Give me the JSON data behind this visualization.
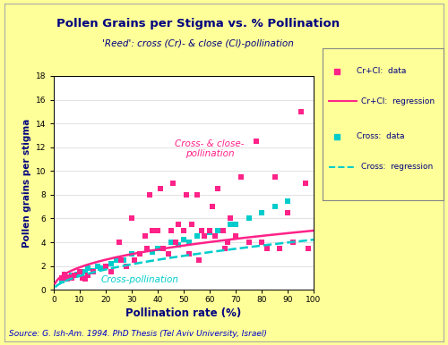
{
  "title": "Pollen Grains per Stigma vs. % Pollination",
  "subtitle": "'Reed': cross (Cr)- & close (Cl)-pollination",
  "xlabel": "Pollination rate (%)",
  "ylabel": "Pollen grains per stigma",
  "source": "Source: G. Ish-Am. 1994. PhD Thesis (Tel Aviv University, Israel)",
  "xlim": [
    0,
    100
  ],
  "ylim": [
    0,
    18
  ],
  "xticks": [
    0,
    10,
    20,
    30,
    40,
    50,
    60,
    70,
    80,
    90,
    100
  ],
  "yticks": [
    0,
    2,
    4,
    6,
    8,
    10,
    12,
    14,
    16,
    18
  ],
  "bg_color": "#FFFF99",
  "plot_bg_color": "#FFFFFF",
  "cc_color": "#FF2288",
  "cross_color": "#00CCCC",
  "annotation_cross_close": "Cross- & close-\npollination",
  "annotation_cross": "Cross-pollination",
  "legend_labels": [
    "Cr+Cl:  data",
    "Cr+Cl:  regression",
    "Cross:  data",
    "Cross:  regression"
  ],
  "cc_scatter_x": [
    3,
    4,
    5,
    6,
    7,
    8,
    10,
    11,
    12,
    13,
    15,
    20,
    22,
    25,
    26,
    28,
    30,
    31,
    33,
    35,
    36,
    37,
    38,
    40,
    41,
    42,
    44,
    45,
    46,
    47,
    48,
    50,
    51,
    52,
    53,
    55,
    56,
    57,
    58,
    60,
    61,
    62,
    63,
    65,
    66,
    67,
    68,
    70,
    72,
    75,
    78,
    80,
    82,
    85,
    87,
    90,
    92,
    95,
    97,
    98
  ],
  "cc_scatter_y": [
    1.0,
    1.3,
    0.9,
    1.1,
    1.0,
    1.2,
    1.5,
    1.0,
    0.9,
    1.2,
    1.5,
    2.0,
    1.5,
    4.0,
    2.5,
    2.0,
    6.0,
    2.5,
    3.0,
    4.5,
    3.5,
    8.0,
    5.0,
    5.0,
    8.5,
    3.5,
    3.0,
    5.0,
    9.0,
    4.0,
    5.5,
    5.0,
    8.0,
    3.0,
    5.5,
    8.0,
    2.5,
    5.0,
    4.5,
    5.0,
    7.0,
    4.5,
    8.5,
    5.0,
    3.5,
    4.0,
    6.0,
    4.5,
    9.5,
    4.0,
    12.5,
    4.0,
    3.5,
    9.5,
    3.5,
    6.5,
    4.0,
    15.0,
    9.0,
    3.5
  ],
  "cross_scatter_x": [
    3,
    5,
    6,
    7,
    9,
    10,
    12,
    13,
    15,
    17,
    18,
    20,
    22,
    24,
    27,
    30,
    33,
    36,
    38,
    40,
    42,
    45,
    48,
    50,
    52,
    55,
    58,
    60,
    63,
    65,
    68,
    70,
    75,
    80,
    85,
    90
  ],
  "cross_scatter_y": [
    0.8,
    1.0,
    1.0,
    1.2,
    1.3,
    1.5,
    1.5,
    1.8,
    1.6,
    2.0,
    1.8,
    2.0,
    2.2,
    2.5,
    2.5,
    3.0,
    3.0,
    3.5,
    3.2,
    3.5,
    3.5,
    4.0,
    3.8,
    4.2,
    4.0,
    4.5,
    4.5,
    4.8,
    5.0,
    5.0,
    5.5,
    5.5,
    6.0,
    6.5,
    7.0,
    7.5
  ],
  "reg_a_cc": 0.72,
  "reg_b_cc": 0.42,
  "reg_a_cross": 0.32,
  "reg_b_cross": 0.56
}
